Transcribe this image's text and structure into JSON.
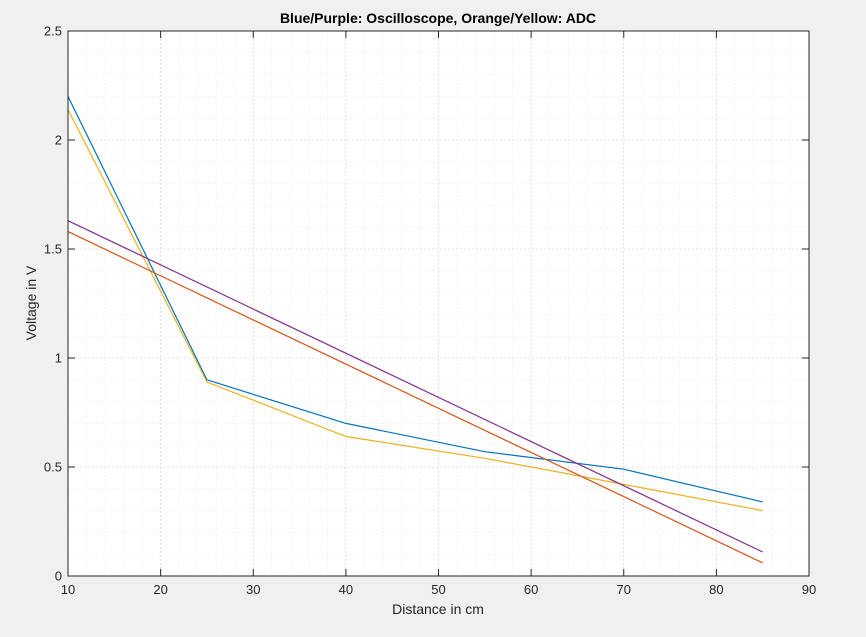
{
  "chart_data": {
    "type": "line",
    "title": "Blue/Purple: Oscilloscope, Orange/Yellow: ADC",
    "xlabel": "Distance in cm",
    "ylabel": "Voltage in V",
    "xlim": [
      10,
      90
    ],
    "ylim": [
      0,
      2.5
    ],
    "xticks": [
      "10",
      "20",
      "30",
      "40",
      "50",
      "60",
      "70",
      "80",
      "90"
    ],
    "yticks": [
      "0",
      "0.5",
      "1",
      "1.5",
      "2",
      "2.5"
    ],
    "xtick_values": [
      10,
      20,
      30,
      40,
      50,
      60,
      70,
      80,
      90
    ],
    "ytick_values": [
      0,
      0.5,
      1,
      1.5,
      2,
      2.5
    ],
    "grid": true,
    "minor_grid": true,
    "series": [
      {
        "color": "#0072BD",
        "x": [
          10,
          25,
          40,
          55,
          70,
          85
        ],
        "y": [
          2.2,
          0.9,
          0.7,
          0.57,
          0.49,
          0.34
        ]
      },
      {
        "color": "#EDB120",
        "x": [
          10,
          25,
          40,
          55,
          70,
          85
        ],
        "y": [
          2.14,
          0.89,
          0.64,
          0.54,
          0.42,
          0.3
        ]
      },
      {
        "color": "#D95319",
        "x": [
          10,
          85
        ],
        "y": [
          1.58,
          0.06
        ]
      },
      {
        "color": "#7E2F8E",
        "x": [
          10,
          85
        ],
        "y": [
          1.63,
          0.11
        ]
      }
    ]
  }
}
